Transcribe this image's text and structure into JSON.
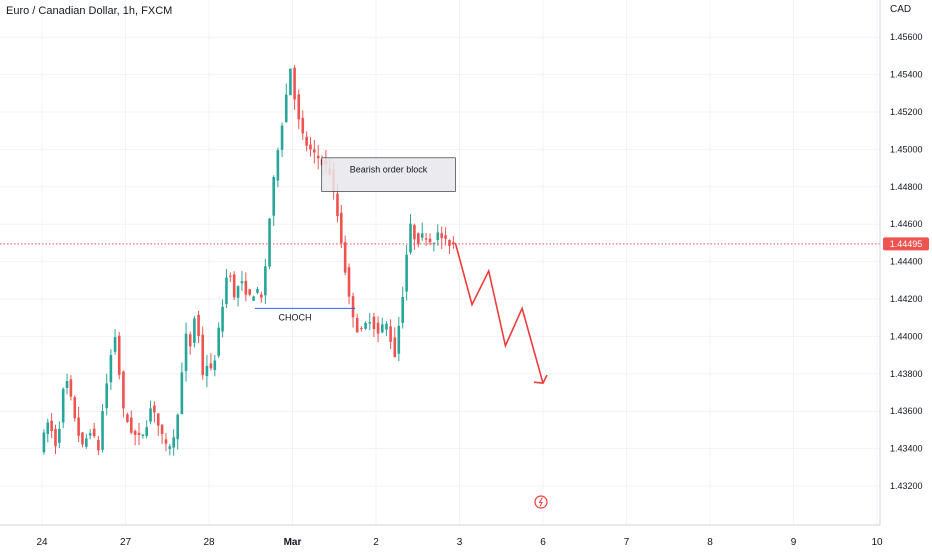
{
  "header": {
    "title": "Euro / Canadian Dollar, 1h, FXCM",
    "currency": "CAD"
  },
  "colors": {
    "up": "#26a69a",
    "down": "#ef5350",
    "grid": "#f0f3fa",
    "price_line": "#ef5350",
    "choch_line": "#2962ff",
    "projection": "#ef3b3b",
    "order_block_fill": "#e8e8ec",
    "order_block_border": "#131722"
  },
  "chart_data": {
    "type": "candlestick",
    "title": "Euro / Canadian Dollar, 1h, FXCM",
    "y_ticks": [
      "1.45600",
      "1.45400",
      "1.45200",
      "1.45000",
      "1.44800",
      "1.44600",
      "1.44400",
      "1.44200",
      "1.44000",
      "1.43800",
      "1.43600",
      "1.43400",
      "1.43200"
    ],
    "x_ticks": [
      "24",
      "27",
      "28",
      "Mar",
      "2",
      "3",
      "6",
      "7",
      "8",
      "9",
      "10"
    ],
    "ylim": [
      1.4305,
      1.4572
    ],
    "last_price": "1.44495",
    "grid": true,
    "candle_segments": [
      {
        "from_day": 0.0,
        "to_day": 0.6,
        "points": [
          1.434,
          1.4355,
          1.434,
          1.438,
          1.436,
          1.434,
          1.435
        ]
      },
      {
        "from_day": 0.6,
        "to_day": 1.0,
        "points": [
          1.435,
          1.4345,
          1.434,
          1.436,
          1.4375,
          1.439,
          1.44,
          1.438,
          1.436
        ]
      },
      {
        "from_day": 1.0,
        "to_day": 1.6,
        "points": [
          1.436,
          1.435,
          1.4345,
          1.435,
          1.4365,
          1.435,
          1.434,
          1.4345
        ]
      },
      {
        "from_day": 1.6,
        "to_day": 2.0,
        "points": [
          1.4345,
          1.436,
          1.438,
          1.44,
          1.4395,
          1.441,
          1.44,
          1.438,
          1.4385
        ]
      },
      {
        "from_day": 2.0,
        "to_day": 2.65,
        "points": [
          1.4385,
          1.438,
          1.44,
          1.442,
          1.444,
          1.442,
          1.443,
          1.4425,
          1.442,
          1.4425,
          1.442
        ]
      },
      {
        "from_day": 2.65,
        "to_day": 3.1,
        "points": [
          1.442,
          1.444,
          1.447,
          1.449,
          1.451,
          1.452,
          1.4548,
          1.453,
          1.4515
        ]
      },
      {
        "from_day": 3.1,
        "to_day": 3.7,
        "points": [
          1.4515,
          1.4505,
          1.45,
          1.4497,
          1.4495,
          1.4492,
          1.449,
          1.4475,
          1.446,
          1.444,
          1.442
        ]
      },
      {
        "from_day": 3.7,
        "to_day": 4.25,
        "points": [
          1.442,
          1.441,
          1.44,
          1.4405,
          1.441,
          1.4405,
          1.44,
          1.441,
          1.44,
          1.439
        ]
      },
      {
        "from_day": 4.25,
        "to_day": 4.95,
        "points": [
          1.439,
          1.442,
          1.446,
          1.445,
          1.4455,
          1.445,
          1.4455,
          1.445,
          1.44495
        ]
      }
    ],
    "annotations": {
      "order_block": {
        "label": "Bearish order block",
        "x_start_day": 3.35,
        "x_end_day": 4.95,
        "y_top": 1.44955,
        "y_bottom": 1.44775
      },
      "choch": {
        "label": "CHOCH",
        "x_start_day": 2.55,
        "x_end_day": 3.75,
        "y": 1.4415
      },
      "projection": {
        "points": [
          [
            4.95,
            1.445
          ],
          [
            5.15,
            1.4417
          ],
          [
            5.35,
            1.4435
          ],
          [
            5.55,
            1.4395
          ],
          [
            5.75,
            1.4415
          ],
          [
            6.0,
            1.4375
          ]
        ]
      }
    }
  }
}
